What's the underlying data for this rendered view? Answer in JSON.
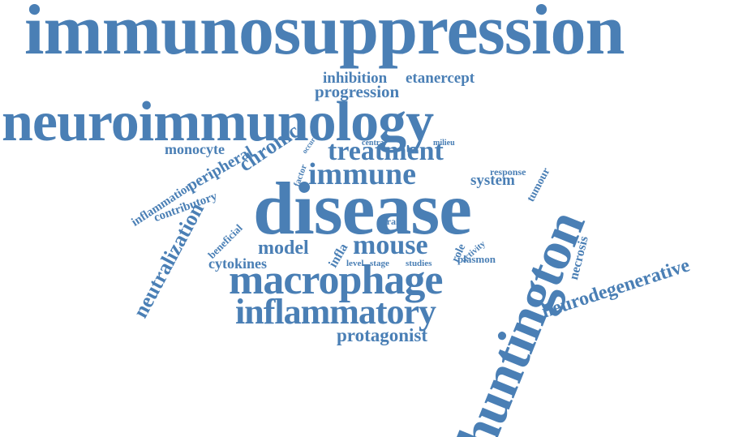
{
  "word_color": "#4a7fb5",
  "background": "#ffffff",
  "words": {
    "immunosuppression": "immunosuppression",
    "neuroimmunology": "neuroimmunology",
    "huntington": "huntington",
    "disease": "disease",
    "macrophage": "macrophage",
    "inflammatory": "inflammatory",
    "treatment": "treatment",
    "immune": "immune",
    "mouse": "mouse",
    "neurodegenerative": "neurodegenerative",
    "neutralization": "neutralization",
    "chronic": "chronic",
    "peripheral": "peripheral",
    "monocyte": "monocyte",
    "inhibition": "inhibition",
    "etanercept": "etanercept",
    "progression": "progression",
    "protagonist": "protagonist",
    "model": "model",
    "cytokines": "cytokines",
    "system": "system",
    "response": "response",
    "tumour": "tumour",
    "necrosis": "necrosis",
    "inflammation": "inflammation",
    "contributory": "contributory",
    "beneficial": "beneficial",
    "factor": "factor",
    "occur": "occur",
    "central": "central",
    "milieu": "milieu",
    "brain": "brain",
    "infla": "infla",
    "role": "role",
    "activity": "activity",
    "plasmon": "plasmon",
    "level": "level",
    "stage": "stage",
    "studies": "studies"
  }
}
